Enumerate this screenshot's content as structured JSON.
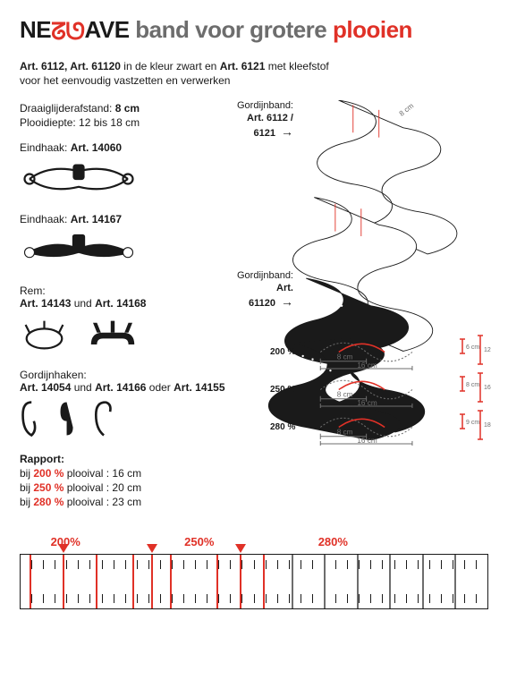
{
  "colors": {
    "text": "#1a1a1a",
    "muted": "#6d6d6d",
    "accent": "#e03127",
    "bg": "#ffffff"
  },
  "title": {
    "pre": "NE",
    "wave_glyph": "ᘔᘎ",
    "post": "AVE",
    "mid": " band voor grotere ",
    "red": "plooien"
  },
  "intro": {
    "b1": "Art. 6112, Art. 61120",
    "t1": " in de kleur zwart en ",
    "b2": "Art. 6121",
    "t2": " met kleefstof voor het eenvoudig vastzetten en verwerken"
  },
  "specs": {
    "l1a": "Draaiglijderafstand: ",
    "l1b": "8 cm",
    "l2": "Plooidiepte: 12 bis 18 cm"
  },
  "bandLabels": {
    "top_label": "Gordijnband:",
    "top_art": "Art. 6112 / 6121",
    "bot_label": "Gordijnband:",
    "bot_art": "Art. 61120",
    "arrow": "→"
  },
  "parts": {
    "eind1_label": "Eindhaak: ",
    "eind1_art": "Art. 14060",
    "eind2_label": "Eindhaak: ",
    "eind2_art": "Art. 14167",
    "rem_label": "Rem:",
    "rem_art_a": "Art. 14143",
    "rem_und": " und ",
    "rem_art_b": "Art. 14168",
    "haken_label": "Gordijnhaken:",
    "haken_a": "Art. 14054",
    "haken_und": " und ",
    "haken_b": "Art. 14166",
    "haken_oder": " oder ",
    "haken_c": "Art. 14155"
  },
  "rapport": {
    "title": "Rapport:",
    "rows": [
      {
        "pre": "bij ",
        "pct": "200 %",
        "post": " plooival : 16 cm"
      },
      {
        "pre": "bij ",
        "pct": "250 %",
        "post": " plooival : 20 cm"
      },
      {
        "pre": "bij ",
        "pct": "280 %",
        "post": " plooival : 23 cm"
      }
    ]
  },
  "dims": {
    "rows": [
      {
        "pct": "200 %",
        "span": "8 cm",
        "total": "16 cm",
        "h": "6 cm",
        "H": "12 cm"
      },
      {
        "pct": "250 %",
        "span": "8 cm",
        "total": "16 cm",
        "h": "8 cm",
        "H": "16 cm"
      },
      {
        "pct": "280 %",
        "span": "8 cm",
        "total": "16 cm",
        "h": "9 cm",
        "H": "18 cm"
      }
    ]
  },
  "bottom": {
    "labels": [
      "200%",
      "250%",
      "280%"
    ],
    "label_positions_pct": [
      9,
      28,
      47
    ],
    "marks_pct": {
      "red": [
        2,
        9,
        16,
        24,
        28,
        32,
        42,
        47,
        52
      ],
      "gray": [
        58,
        65,
        72,
        79,
        86,
        93
      ]
    },
    "cells_per_row": 40
  }
}
